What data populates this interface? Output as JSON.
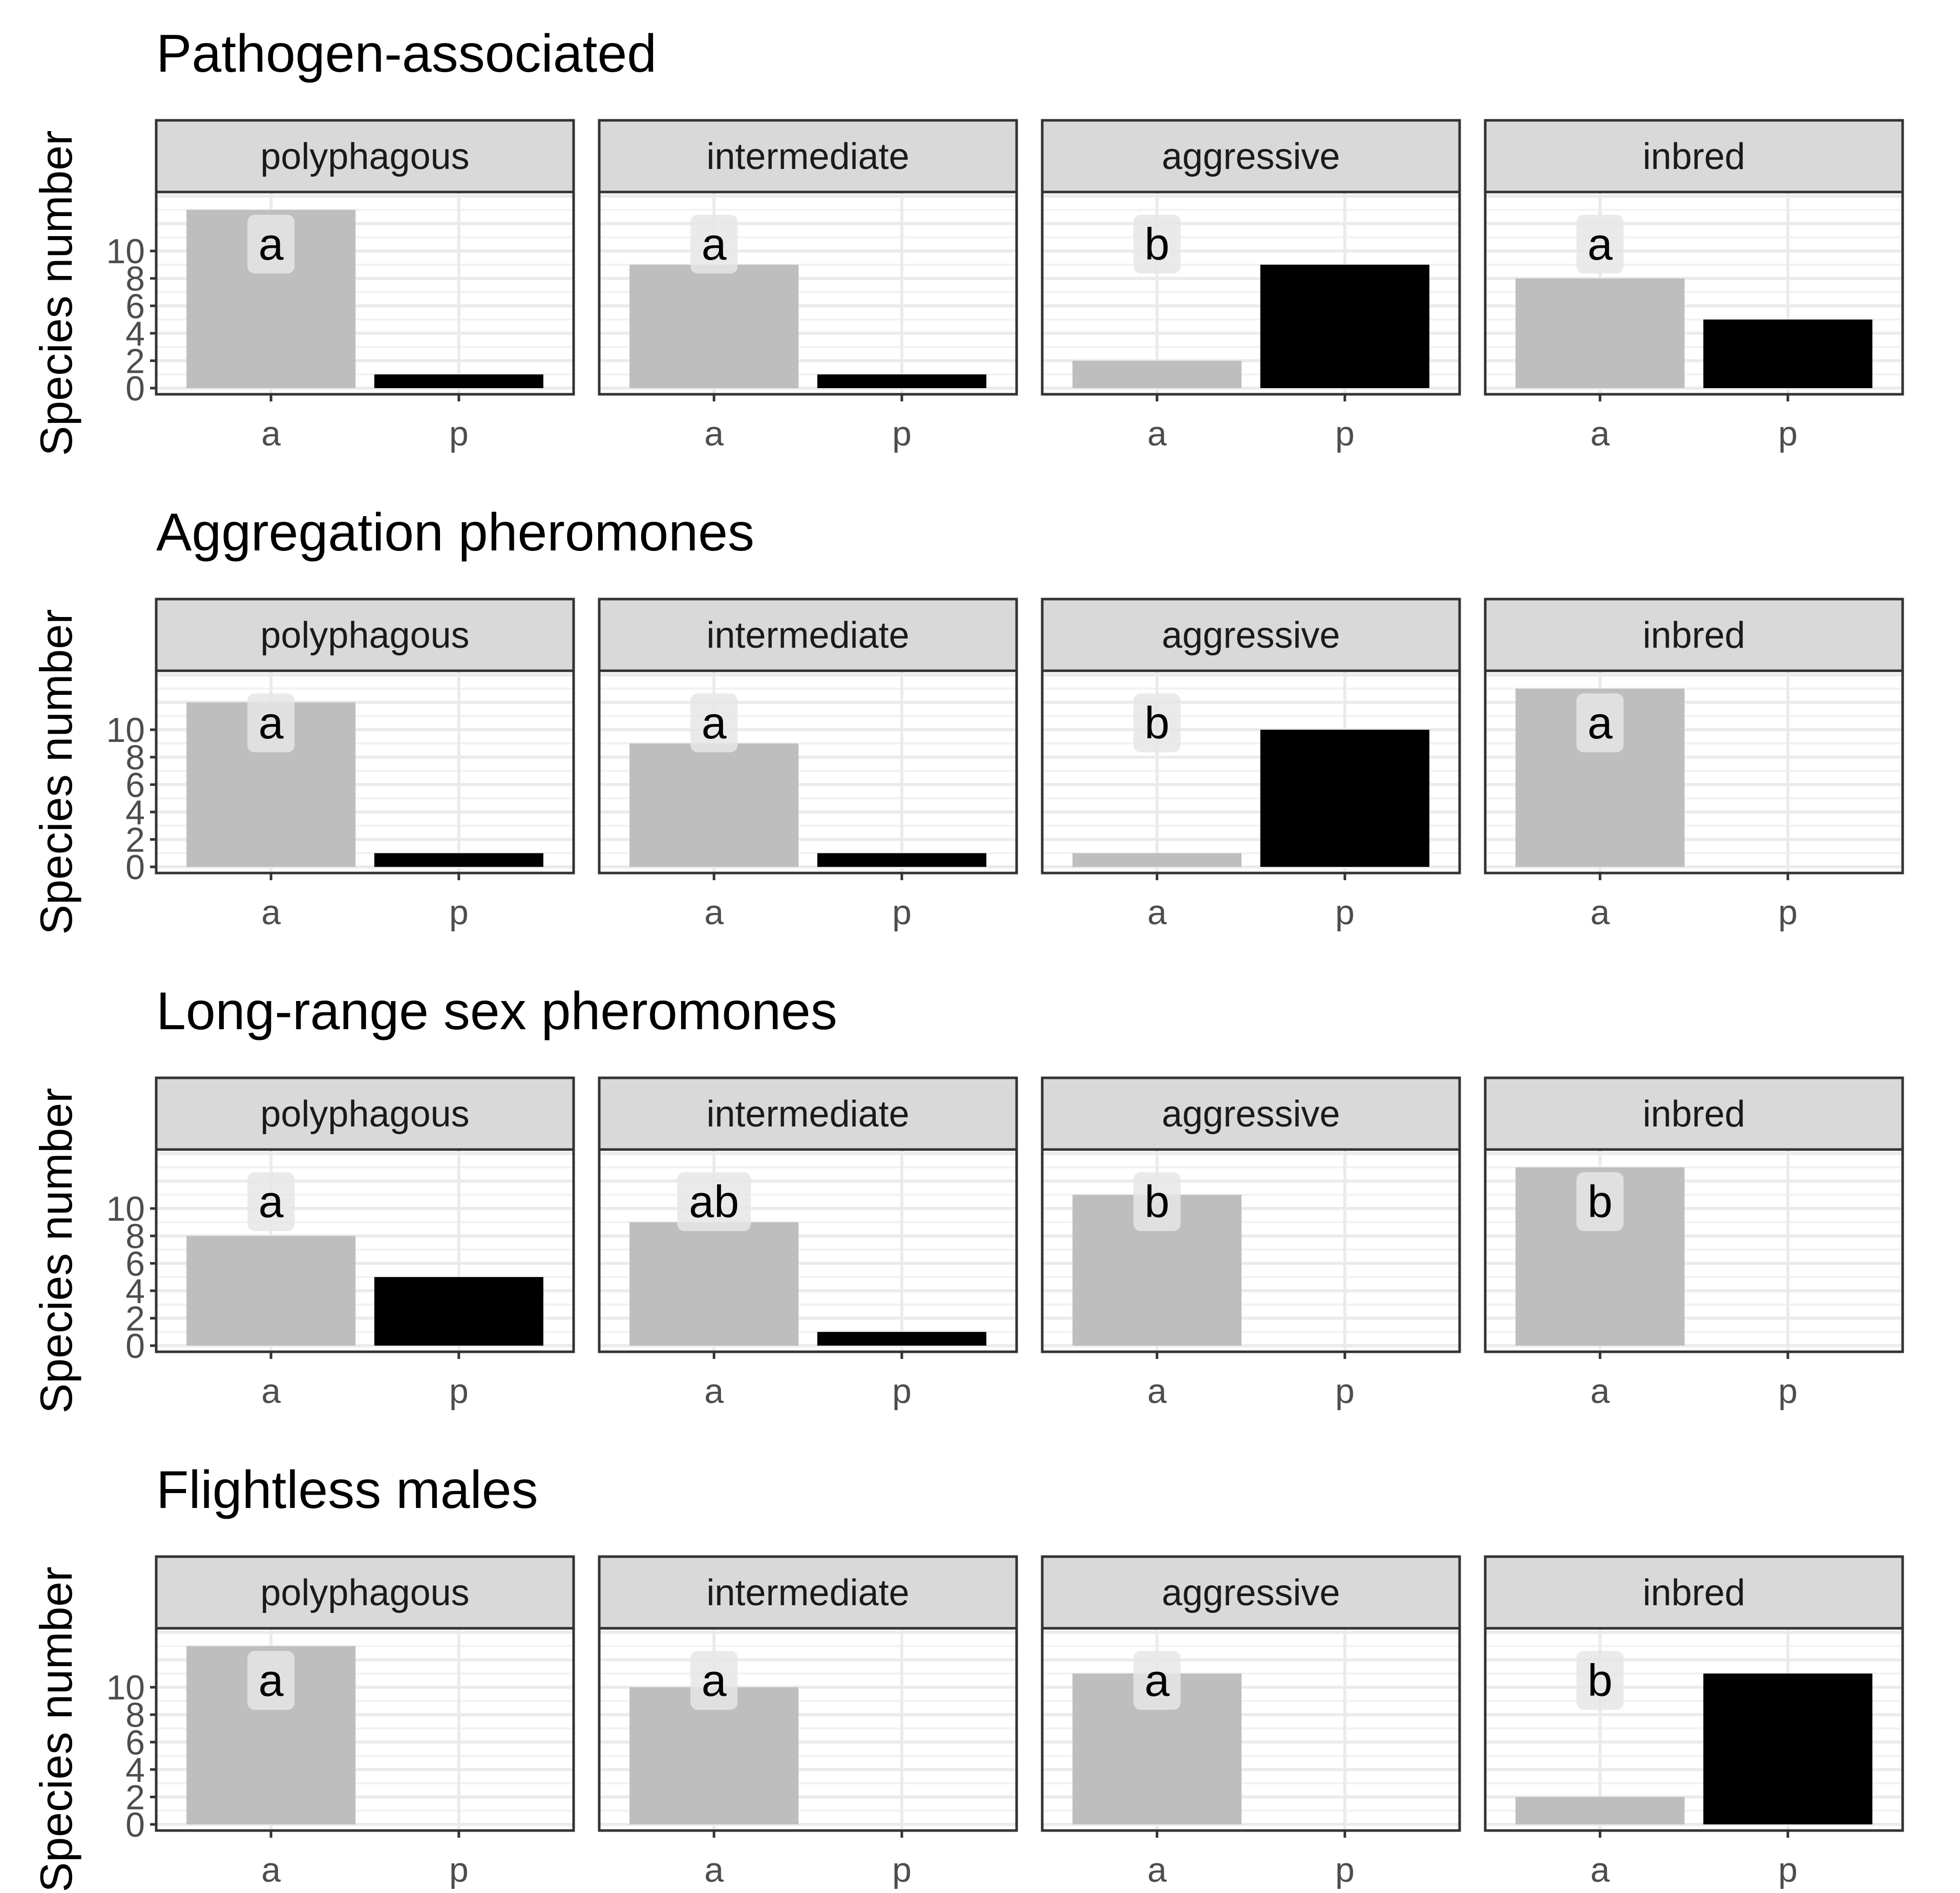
{
  "figure": {
    "ylabel": "Species number",
    "facets": [
      "polyphagous",
      "intermediate",
      "aggressive",
      "inbred"
    ],
    "categories": [
      "a",
      "p"
    ],
    "y_ticks": [
      0,
      2,
      4,
      6,
      8,
      10
    ],
    "ylim": [
      0,
      14
    ],
    "bar_colors": {
      "a": "#bebebe",
      "p": "#000000"
    }
  },
  "chart_data": [
    {
      "type": "bar",
      "title": "Pathogen-associated",
      "ylabel": "Species number",
      "panels": [
        {
          "facet": "polyphagous",
          "values": {
            "a": 13,
            "p": 1
          },
          "letter": "a"
        },
        {
          "facet": "intermediate",
          "values": {
            "a": 9,
            "p": 1
          },
          "letter": "a"
        },
        {
          "facet": "aggressive",
          "values": {
            "a": 2,
            "p": 9
          },
          "letter": "b"
        },
        {
          "facet": "inbred",
          "values": {
            "a": 8,
            "p": 5
          },
          "letter": "a"
        }
      ]
    },
    {
      "type": "bar",
      "title": "Aggregation pheromones",
      "ylabel": "Species number",
      "panels": [
        {
          "facet": "polyphagous",
          "values": {
            "a": 12,
            "p": 1
          },
          "letter": "a"
        },
        {
          "facet": "intermediate",
          "values": {
            "a": 9,
            "p": 1
          },
          "letter": "a"
        },
        {
          "facet": "aggressive",
          "values": {
            "a": 1,
            "p": 10
          },
          "letter": "b"
        },
        {
          "facet": "inbred",
          "values": {
            "a": 13,
            "p": 0
          },
          "letter": "a"
        }
      ]
    },
    {
      "type": "bar",
      "title": "Long-range sex pheromones",
      "ylabel": "Species number",
      "panels": [
        {
          "facet": "polyphagous",
          "values": {
            "a": 8,
            "p": 5
          },
          "letter": "a"
        },
        {
          "facet": "intermediate",
          "values": {
            "a": 9,
            "p": 1
          },
          "letter": "ab"
        },
        {
          "facet": "aggressive",
          "values": {
            "a": 11,
            "p": 0
          },
          "letter": "b"
        },
        {
          "facet": "inbred",
          "values": {
            "a": 13,
            "p": 0
          },
          "letter": "b"
        }
      ]
    },
    {
      "type": "bar",
      "title": "Flightless males",
      "ylabel": "Species number",
      "panels": [
        {
          "facet": "polyphagous",
          "values": {
            "a": 13,
            "p": 0
          },
          "letter": "a"
        },
        {
          "facet": "intermediate",
          "values": {
            "a": 10,
            "p": 0
          },
          "letter": "a"
        },
        {
          "facet": "aggressive",
          "values": {
            "a": 11,
            "p": 0
          },
          "letter": "a"
        },
        {
          "facet": "inbred",
          "values": {
            "a": 2,
            "p": 11
          },
          "letter": "b"
        }
      ]
    }
  ]
}
